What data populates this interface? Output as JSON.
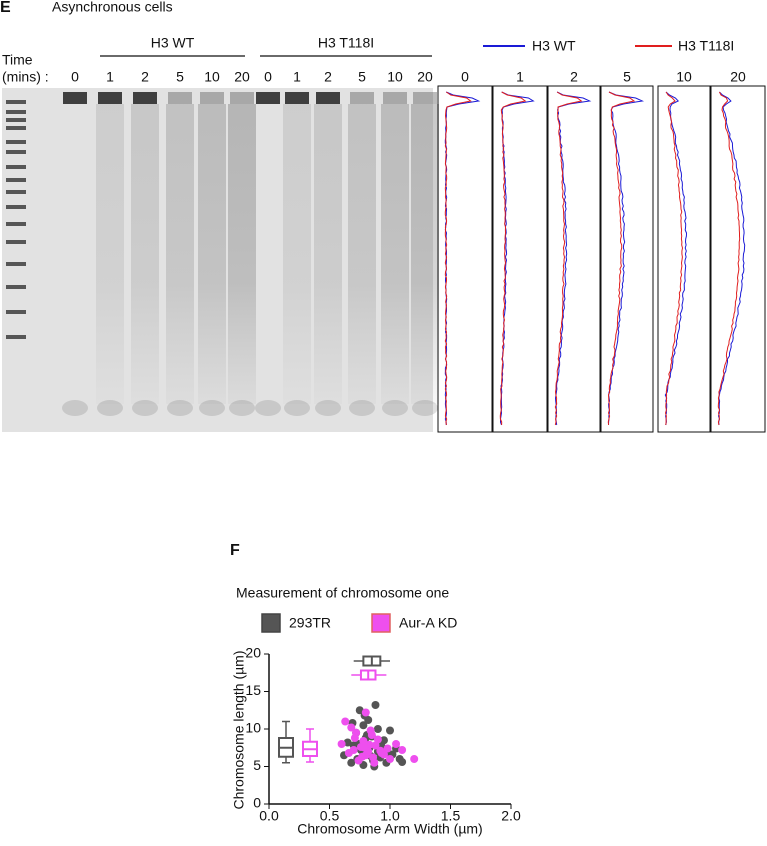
{
  "panel_e": {
    "label": "E",
    "title": "Asynchronous cells",
    "time_label": [
      "Time",
      "(mins) :"
    ],
    "groups": [
      {
        "name": "H3 WT",
        "lanes": [
          "0",
          "1",
          "2",
          "5",
          "10",
          "20"
        ]
      },
      {
        "name": "H3 T118I",
        "lanes": [
          "0",
          "1",
          "2",
          "5",
          "10",
          "20"
        ]
      }
    ],
    "profiles": {
      "legend": [
        {
          "name": "H3 WT",
          "color": "#1a1ad6"
        },
        {
          "name": "H3 T118I",
          "color": "#e01e1e"
        }
      ],
      "lanes": [
        "0",
        "1",
        "2",
        "5",
        "10",
        "20"
      ]
    }
  },
  "panel_f_label": "F",
  "chart_data": {
    "type": "scatter",
    "title": "Measurement of chromosome one",
    "x_label": "Chromosome Arm Width (µm)",
    "y_label": "Chromosome length (µm)",
    "xlim": [
      0,
      2
    ],
    "ylim": [
      0,
      20
    ],
    "xticks": [
      {
        "value": 0,
        "label": "0.0"
      },
      {
        "value": 0.5,
        "label": "0.5"
      },
      {
        "value": 1,
        "label": "1.0"
      },
      {
        "value": 1.5,
        "label": "1.5"
      },
      {
        "value": 2,
        "label": "2.0"
      }
    ],
    "yticks": [
      0,
      5,
      10,
      15,
      20
    ],
    "series": [
      {
        "name": "293TR",
        "color": "#555555",
        "edge": "#444444",
        "x": [
          0.62,
          0.65,
          0.68,
          0.7,
          0.72,
          0.73,
          0.75,
          0.76,
          0.78,
          0.78,
          0.8,
          0.8,
          0.82,
          0.83,
          0.85,
          0.86,
          0.88,
          0.9,
          0.9,
          0.92,
          0.95,
          0.97,
          1.0,
          1.02,
          1.05,
          1.08,
          1.1,
          0.74,
          0.79,
          0.84,
          0.87,
          0.93,
          0.69,
          0.81,
          0.98
        ],
        "y": [
          6.5,
          8.2,
          5.5,
          7.8,
          9.5,
          6.0,
          12.5,
          7.2,
          10.5,
          5.2,
          8.8,
          6.8,
          11.2,
          7.5,
          9.0,
          5.8,
          13.2,
          7.0,
          10.0,
          6.2,
          8.5,
          5.5,
          9.8,
          6.6,
          7.4,
          6.0,
          5.6,
          8.0,
          11.8,
          6.4,
          5.0,
          7.7,
          10.8,
          9.2,
          6.9
        ],
        "length_box": {
          "whislo": 5.5,
          "q1": 6.3,
          "med": 7.5,
          "q3": 8.8,
          "whishi": 11
        },
        "width_box": {
          "whislo": 0.7,
          "q1": 0.78,
          "med": 0.85,
          "q3": 0.92,
          "whishi": 1.0
        }
      },
      {
        "name": "Aur-A KD",
        "color": "#ee4fee",
        "edge": "#e06060",
        "x": [
          0.6,
          0.63,
          0.66,
          0.7,
          0.72,
          0.74,
          0.76,
          0.78,
          0.8,
          0.8,
          0.82,
          0.84,
          0.86,
          0.88,
          0.9,
          0.92,
          0.95,
          0.98,
          1.0,
          1.05,
          1.1,
          1.2,
          0.68,
          0.77,
          0.83,
          0.87,
          0.71,
          0.79,
          0.85,
          0.93
        ],
        "y": [
          8.0,
          11.0,
          6.8,
          7.2,
          9.5,
          5.8,
          7.6,
          8.4,
          6.5,
          12.2,
          7.0,
          9.8,
          6.2,
          7.8,
          8.6,
          7.1,
          6.6,
          7.4,
          6.0,
          8.0,
          7.2,
          6.0,
          10.2,
          6.3,
          7.9,
          5.5,
          8.8,
          7.5,
          9.2,
          6.8
        ],
        "length_box": {
          "whislo": 5.6,
          "q1": 6.4,
          "med": 7.3,
          "q3": 8.3,
          "whishi": 10
        },
        "width_box": {
          "whislo": 0.68,
          "q1": 0.76,
          "med": 0.82,
          "q3": 0.88,
          "whishi": 0.97
        }
      }
    ]
  }
}
